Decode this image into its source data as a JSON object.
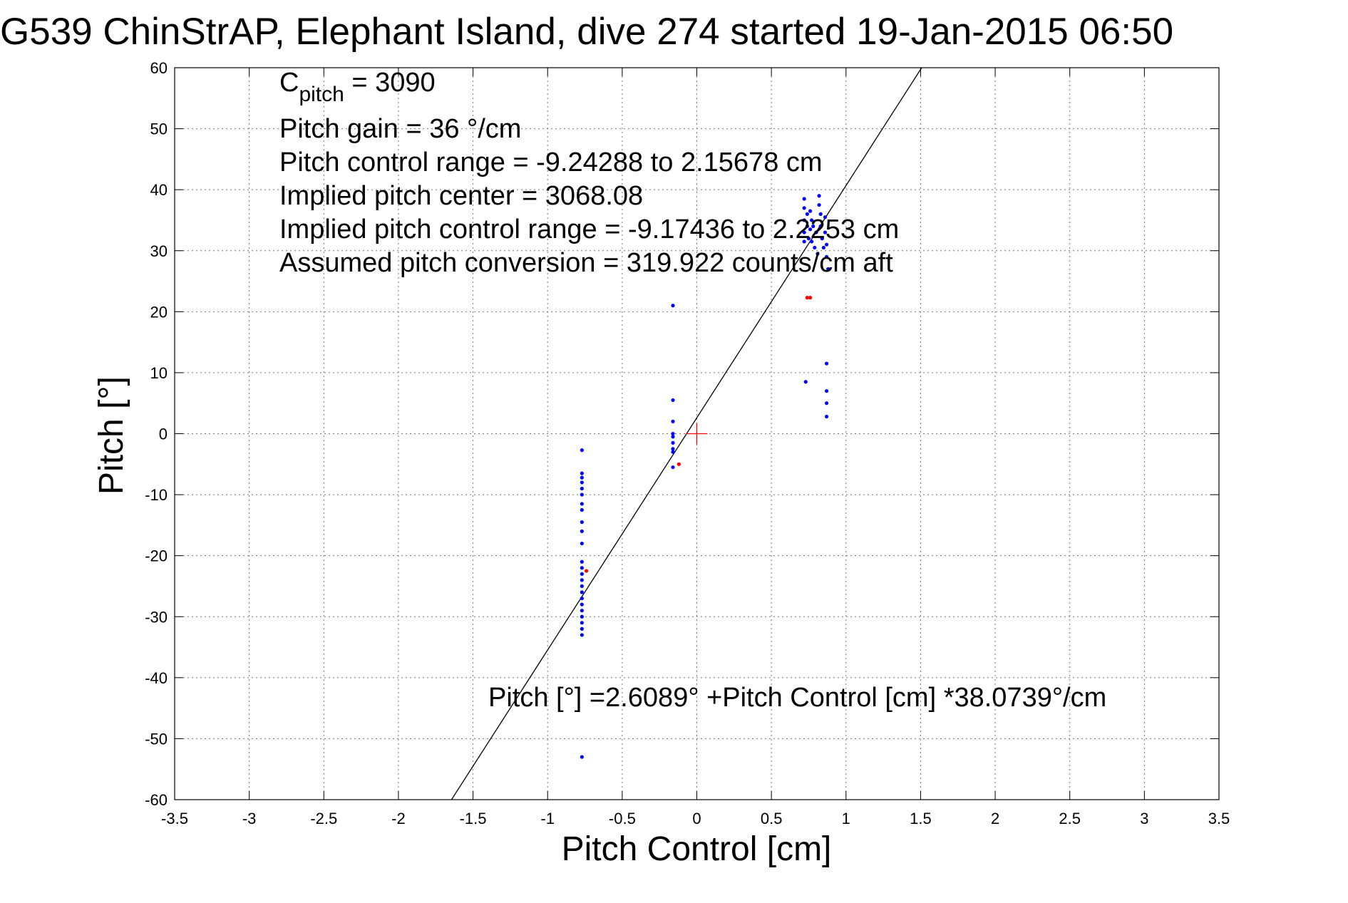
{
  "title": "G539 ChinStrAP, Elephant Island, dive 274 started 19-Jan-2015 06:50",
  "chart_data": {
    "type": "scatter",
    "title": "G539 ChinStrAP, Elephant Island, dive 274 started 19-Jan-2015 06:50",
    "xlabel": "Pitch Control [cm]",
    "ylabel": "Pitch [°]",
    "xlim": [
      -3.5,
      3.5
    ],
    "ylim": [
      -60,
      60
    ],
    "xticks": [
      -3.5,
      -3,
      -2.5,
      -2,
      -1.5,
      -1,
      -0.5,
      0,
      0.5,
      1,
      1.5,
      2,
      2.5,
      3,
      3.5
    ],
    "yticks": [
      -60,
      -50,
      -40,
      -30,
      -20,
      -10,
      0,
      10,
      20,
      30,
      40,
      50,
      60
    ],
    "grid": true,
    "annotations": {
      "c_pitch_prefix": "C",
      "c_pitch_subscript": "pitch",
      "c_pitch_value": " = 3090",
      "pitch_gain": "Pitch gain = 36 °/cm",
      "control_range": "Pitch control range = -9.24288 to 2.15678 cm",
      "implied_center": "Implied pitch center = 3068.08",
      "implied_range": "Implied pitch control range = -9.17436 to 2.2253 cm",
      "conversion": "Assumed pitch conversion = 319.922 counts/cm aft",
      "fit_equation": "Pitch [°] =2.6089° +Pitch Control [cm] *38.0739°/cm"
    },
    "fit": {
      "intercept": 2.6089,
      "slope": 38.0739
    },
    "center_marker": {
      "x": 0,
      "y": 0,
      "color": "#ff0000"
    },
    "series": [
      {
        "color": "#0000ff",
        "points": [
          [
            -0.77,
            -2.7
          ],
          [
            -0.77,
            -6.5
          ],
          [
            -0.77,
            -7.2
          ],
          [
            -0.77,
            -8.0
          ],
          [
            -0.77,
            -9.0
          ],
          [
            -0.77,
            -10.0
          ],
          [
            -0.77,
            -11.5
          ],
          [
            -0.77,
            -12.5
          ],
          [
            -0.77,
            -14.5
          ],
          [
            -0.77,
            -16.0
          ],
          [
            -0.77,
            -18.0
          ],
          [
            -0.77,
            -21.0
          ],
          [
            -0.77,
            -22.0
          ],
          [
            -0.77,
            -23.0
          ],
          [
            -0.77,
            -24.0
          ],
          [
            -0.77,
            -25.0
          ],
          [
            -0.77,
            -26.0
          ],
          [
            -0.77,
            -27.0
          ],
          [
            -0.77,
            -28.0
          ],
          [
            -0.77,
            -29.0
          ],
          [
            -0.77,
            -30.0
          ],
          [
            -0.77,
            -31.0
          ],
          [
            -0.77,
            -32.0
          ],
          [
            -0.77,
            -33.0
          ],
          [
            -0.77,
            -53.0
          ],
          [
            -0.16,
            21.0
          ],
          [
            -0.16,
            5.5
          ],
          [
            -0.16,
            2.0
          ],
          [
            -0.16,
            0.0
          ],
          [
            -0.16,
            -0.5
          ],
          [
            -0.16,
            -1.5
          ],
          [
            -0.16,
            -2.5
          ],
          [
            -0.16,
            -3.0
          ],
          [
            -0.16,
            -5.5
          ],
          [
            0.72,
            38.5
          ],
          [
            0.72,
            37.0
          ],
          [
            0.72,
            35.0
          ],
          [
            0.72,
            33.0
          ],
          [
            0.72,
            31.5
          ],
          [
            0.74,
            36.0
          ],
          [
            0.74,
            34.0
          ],
          [
            0.75,
            32.0
          ],
          [
            0.76,
            36.5
          ],
          [
            0.76,
            33.5
          ],
          [
            0.77,
            35.0
          ],
          [
            0.77,
            31.5
          ],
          [
            0.78,
            34.0
          ],
          [
            0.79,
            30.5
          ],
          [
            0.8,
            33.0
          ],
          [
            0.81,
            29.5
          ],
          [
            0.82,
            39.0
          ],
          [
            0.82,
            37.5
          ],
          [
            0.83,
            36.0
          ],
          [
            0.83,
            34.0
          ],
          [
            0.84,
            32.0
          ],
          [
            0.85,
            30.5
          ],
          [
            0.86,
            35.5
          ],
          [
            0.86,
            33.0
          ],
          [
            0.87,
            31.0
          ],
          [
            0.87,
            29.0
          ],
          [
            0.88,
            27.0
          ],
          [
            0.73,
            8.5
          ],
          [
            0.87,
            11.5
          ],
          [
            0.87,
            7.0
          ],
          [
            0.87,
            5.0
          ],
          [
            0.87,
            2.8
          ]
        ]
      },
      {
        "color": "#ff0000",
        "points": [
          [
            0.74,
            22.3
          ],
          [
            0.76,
            22.3
          ],
          [
            -0.74,
            -22.5
          ],
          [
            -0.12,
            -5.0
          ]
        ]
      }
    ]
  }
}
